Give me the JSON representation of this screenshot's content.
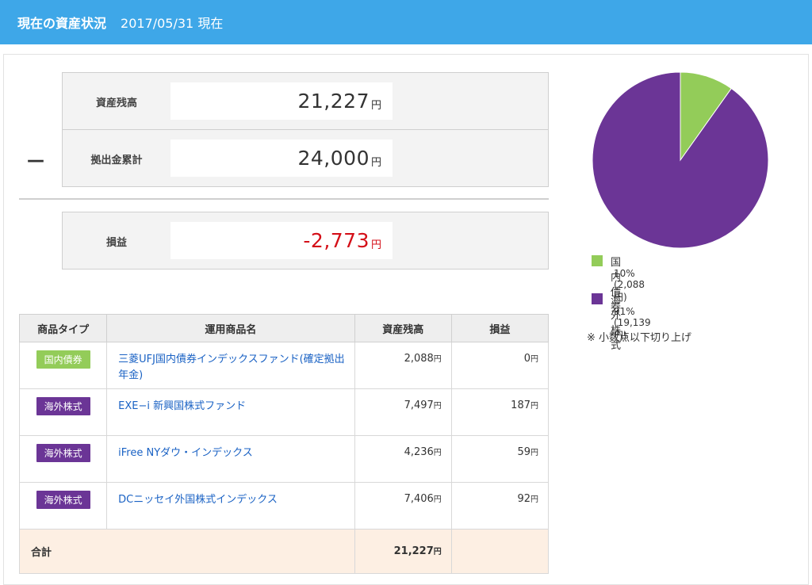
{
  "header": {
    "title": "現在の資産状況",
    "date": "2017/05/31 現在"
  },
  "summary": {
    "minus_symbol": "—",
    "balance": {
      "label": "資産残高",
      "value": "21,227",
      "unit": "円"
    },
    "contribution": {
      "label": "拠出金累計",
      "value": "24,000",
      "unit": "円"
    },
    "profit": {
      "label": "損益",
      "value": "-2,773",
      "unit": "円"
    }
  },
  "table": {
    "headers": [
      "商品タイプ",
      "運用商品名",
      "資産残高",
      "損益"
    ],
    "rows": [
      {
        "type": "国内債券",
        "type_kind": "dom",
        "name": "三菱UFJ国内債券インデックスファンド(確定拠出年金)",
        "balance": "2,088",
        "pl": "0"
      },
      {
        "type": "海外株式",
        "type_kind": "intl",
        "name": "EXE−i 新興国株式ファンド",
        "balance": "7,497",
        "pl": "187"
      },
      {
        "type": "海外株式",
        "type_kind": "intl",
        "name": "iFree NYダウ・インデックス",
        "balance": "4,236",
        "pl": "59"
      },
      {
        "type": "海外株式",
        "type_kind": "intl",
        "name": "DCニッセイ外国株式インデックス",
        "balance": "7,406",
        "pl": "92"
      }
    ],
    "unit": "円",
    "total": {
      "label": "合計",
      "balance": "21,227"
    }
  },
  "pie": {
    "segments": [
      {
        "name": "国内債券",
        "detail": "10% (2,088円)",
        "value": 2088,
        "color": "#93cc59"
      },
      {
        "name": "海外株式",
        "detail": "91% (19,139円)",
        "value": 19139,
        "color": "#6b3596"
      }
    ],
    "note": "※ 小数点以下切り上げ"
  }
}
